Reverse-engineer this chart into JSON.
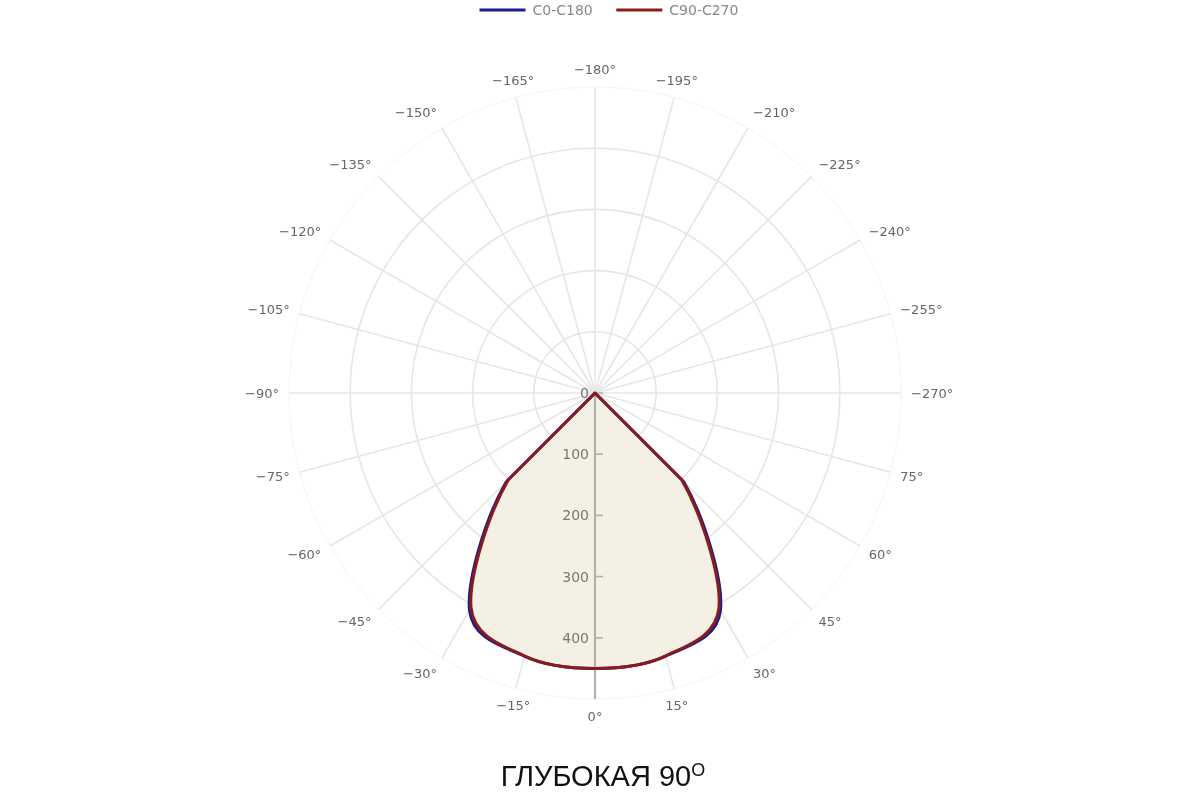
{
  "chart_data": {
    "type": "radar",
    "title": "ГЛУБОКАЯ 90$^{O}$",
    "categories": [
      "−180°",
      "−195°",
      "−210°",
      "−225°",
      "−240°",
      "−255°",
      "−270°",
      "75°",
      "60°",
      "45°",
      "30°",
      "15°",
      "0°",
      "−15°",
      "−30°",
      "−45°",
      "−60°",
      "−75°",
      "−90°",
      "−105°",
      "−120°",
      "−135°",
      "−150°",
      "−165°"
    ],
    "series": [
      {
        "name": "C0-C180",
        "color": "#1c1c8c",
        "values": [
          0,
          0,
          0,
          0,
          0,
          0,
          0,
          0,
          0,
          205,
          410,
          445,
          450,
          445,
          410,
          205,
          0,
          0,
          0,
          0,
          0,
          0,
          0,
          0
        ]
      },
      {
        "name": "C90-C270",
        "color": "#8b1a1a",
        "values": [
          0,
          0,
          0,
          0,
          0,
          0,
          0,
          0,
          0,
          200,
          405,
          445,
          450,
          445,
          405,
          200,
          0,
          0,
          0,
          0,
          0,
          0,
          0,
          0
        ]
      }
    ],
    "ylim": [
      0,
      500
    ],
    "yticks": [
      0,
      100,
      200,
      300,
      400
    ],
    "grid": true,
    "legend": "top"
  }
}
